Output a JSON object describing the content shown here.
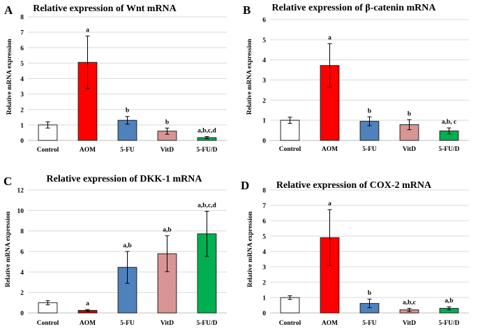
{
  "chart_data": [
    {
      "panel": "A",
      "type": "bar",
      "title": "Relative expression of Wnt mRNA",
      "ylabel": "Relative mRNA expression",
      "xlabel": "",
      "ylim": [
        0,
        8
      ],
      "yticks": [
        0,
        1,
        2,
        3,
        4,
        5,
        6,
        7,
        8
      ],
      "categories": [
        "Control",
        "AOM",
        "5-FU",
        "VitD",
        "5-FU/D"
      ],
      "values": [
        1.0,
        5.05,
        1.3,
        0.6,
        0.18
      ],
      "errors": [
        0.2,
        1.7,
        0.25,
        0.2,
        0.07
      ],
      "colors": [
        "#ffffff",
        "#ff0000",
        "#4f81bd",
        "#d99594",
        "#00b050"
      ],
      "significance": [
        "",
        "a",
        "b",
        "b",
        "a,b,c,d"
      ],
      "grid": true,
      "legend": "none"
    },
    {
      "panel": "B",
      "type": "bar",
      "title": "Relative expression of β-catenin mRNA",
      "ylabel": "Relative mRNA expression",
      "xlabel": "",
      "ylim": [
        0,
        6
      ],
      "yticks": [
        0,
        1,
        2,
        3,
        4,
        5,
        6
      ],
      "categories": [
        "Control",
        "AOM",
        "5-FU",
        "VitD",
        "5-FU/D"
      ],
      "values": [
        1.0,
        3.72,
        0.95,
        0.78,
        0.47
      ],
      "errors": [
        0.15,
        1.08,
        0.22,
        0.25,
        0.15
      ],
      "colors": [
        "#ffffff",
        "#ff0000",
        "#4f81bd",
        "#d99594",
        "#00b050"
      ],
      "significance": [
        "",
        "a",
        "b",
        "b",
        "a,b, c"
      ],
      "grid": true,
      "legend": "none"
    },
    {
      "panel": "C",
      "type": "bar",
      "title": "Relative expression of DKK-1 mRNA",
      "ylabel": "Relative mRNA expression",
      "xlabel": "",
      "ylim": [
        0,
        12
      ],
      "yticks": [
        0,
        2,
        4,
        6,
        8,
        10,
        12
      ],
      "categories": [
        "Control",
        "AOM",
        "5-FU",
        "VitD",
        "5-FU/D"
      ],
      "values": [
        1.0,
        0.25,
        4.45,
        5.78,
        7.72
      ],
      "errors": [
        0.2,
        0.08,
        1.55,
        1.75,
        2.2
      ],
      "colors": [
        "#ffffff",
        "#c00000",
        "#4f81bd",
        "#d99594",
        "#00b050"
      ],
      "significance": [
        "",
        "a",
        "a,b",
        "a,b",
        "a,b,c,d"
      ],
      "grid": true,
      "legend": "none"
    },
    {
      "panel": "D",
      "type": "bar",
      "title": "Relative expression of COX-2 mRNA",
      "ylabel": "Relative mRNA expression",
      "xlabel": "",
      "ylim": [
        0,
        8
      ],
      "yticks": [
        0,
        1,
        2,
        3,
        4,
        5,
        6,
        7,
        8
      ],
      "categories": [
        "Control",
        "AOM",
        "5-FU",
        "VitD",
        "5-FU/D"
      ],
      "values": [
        1.0,
        4.9,
        0.62,
        0.2,
        0.3
      ],
      "errors": [
        0.12,
        1.82,
        0.28,
        0.1,
        0.1
      ],
      "colors": [
        "#ffffff",
        "#ff0000",
        "#4f81bd",
        "#d99594",
        "#00b050"
      ],
      "significance": [
        "",
        "a",
        "b",
        "a,b,c",
        "a,b"
      ],
      "grid": true,
      "legend": "none"
    }
  ]
}
